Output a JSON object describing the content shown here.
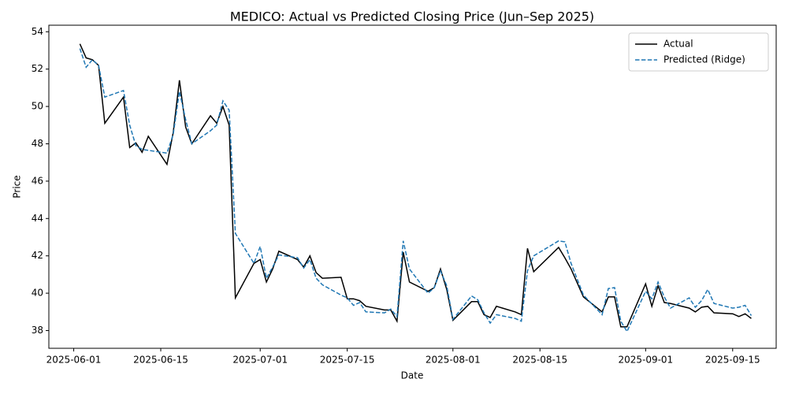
{
  "chart_data": {
    "type": "line",
    "title": "MEDICO: Actual vs Predicted Closing Price (Jun–Sep 2025)",
    "xlabel": "Date",
    "ylabel": "Price",
    "x": [
      "2025-06-02",
      "2025-06-03",
      "2025-06-04",
      "2025-06-05",
      "2025-06-06",
      "2025-06-09",
      "2025-06-10",
      "2025-06-11",
      "2025-06-12",
      "2025-06-13",
      "2025-06-16",
      "2025-06-17",
      "2025-06-18",
      "2025-06-19",
      "2025-06-20",
      "2025-06-23",
      "2025-06-24",
      "2025-06-25",
      "2025-06-26",
      "2025-06-27",
      "2025-06-30",
      "2025-07-01",
      "2025-07-02",
      "2025-07-03",
      "2025-07-04",
      "2025-07-07",
      "2025-07-08",
      "2025-07-09",
      "2025-07-10",
      "2025-07-11",
      "2025-07-14",
      "2025-07-15",
      "2025-07-16",
      "2025-07-17",
      "2025-07-18",
      "2025-07-21",
      "2025-07-22",
      "2025-07-23",
      "2025-07-24",
      "2025-07-25",
      "2025-07-28",
      "2025-07-29",
      "2025-07-30",
      "2025-07-31",
      "2025-08-01",
      "2025-08-04",
      "2025-08-05",
      "2025-08-06",
      "2025-08-07",
      "2025-08-08",
      "2025-08-11",
      "2025-08-12",
      "2025-08-13",
      "2025-08-14",
      "2025-08-18",
      "2025-08-19",
      "2025-08-20",
      "2025-08-22",
      "2025-08-25",
      "2025-08-26",
      "2025-08-27",
      "2025-08-28",
      "2025-08-29",
      "2025-09-01",
      "2025-09-02",
      "2025-09-03",
      "2025-09-04",
      "2025-09-05",
      "2025-09-08",
      "2025-09-09",
      "2025-09-10",
      "2025-09-11",
      "2025-09-12",
      "2025-09-15",
      "2025-09-16",
      "2025-09-17",
      "2025-09-18"
    ],
    "series": [
      {
        "name": "Actual",
        "color": "#000000",
        "dash": false,
        "values": [
          53.35,
          52.6,
          52.5,
          52.2,
          49.1,
          50.5,
          47.8,
          48.05,
          47.55,
          48.4,
          46.9,
          48.6,
          51.4,
          48.9,
          48.0,
          49.5,
          49.1,
          50.0,
          49.0,
          39.75,
          41.6,
          41.8,
          40.6,
          41.3,
          42.25,
          41.8,
          41.4,
          42.0,
          41.1,
          40.8,
          40.85,
          39.7,
          39.7,
          39.6,
          39.3,
          39.1,
          39.1,
          38.5,
          42.2,
          40.6,
          40.1,
          40.3,
          41.3,
          40.2,
          38.55,
          39.55,
          39.55,
          38.85,
          38.7,
          39.3,
          39.0,
          38.85,
          42.4,
          41.15,
          42.45,
          41.9,
          41.3,
          39.8,
          39.0,
          39.8,
          39.8,
          38.2,
          38.2,
          40.5,
          39.3,
          40.4,
          39.5,
          39.45,
          39.2,
          39.0,
          39.25,
          39.3,
          38.95,
          38.9,
          38.75,
          38.9,
          38.65
        ]
      },
      {
        "name": "Predicted (Ridge)",
        "color": "#1f77b4",
        "dash": true,
        "values": [
          53.1,
          52.1,
          52.5,
          52.2,
          50.5,
          50.85,
          49.0,
          47.9,
          47.7,
          47.65,
          47.5,
          48.5,
          50.8,
          49.3,
          48.0,
          48.7,
          49.0,
          50.3,
          49.8,
          43.2,
          41.6,
          42.5,
          40.8,
          41.4,
          42.05,
          41.9,
          41.35,
          41.8,
          40.8,
          40.45,
          39.9,
          39.75,
          39.35,
          39.5,
          39.0,
          38.95,
          39.15,
          38.75,
          42.8,
          41.3,
          40.0,
          40.3,
          41.2,
          40.4,
          38.6,
          39.85,
          39.65,
          38.95,
          38.4,
          38.85,
          38.65,
          38.5,
          41.2,
          42.0,
          42.8,
          42.75,
          41.6,
          39.9,
          38.85,
          40.25,
          40.3,
          38.5,
          37.95,
          40.1,
          39.7,
          40.6,
          39.8,
          39.2,
          39.75,
          39.25,
          39.6,
          40.2,
          39.45,
          39.2,
          39.25,
          39.35,
          38.8
        ]
      }
    ],
    "xlim": [
      "2025-05-28",
      "2025-09-22"
    ],
    "xticks": [
      "2025-06-01",
      "2025-06-15",
      "2025-07-01",
      "2025-07-15",
      "2025-08-01",
      "2025-08-15",
      "2025-09-01",
      "2025-09-15"
    ],
    "ylim": [
      37.05,
      54.35
    ],
    "yticks": [
      38,
      40,
      42,
      44,
      46,
      48,
      50,
      52,
      54
    ],
    "legend": "upper right"
  }
}
